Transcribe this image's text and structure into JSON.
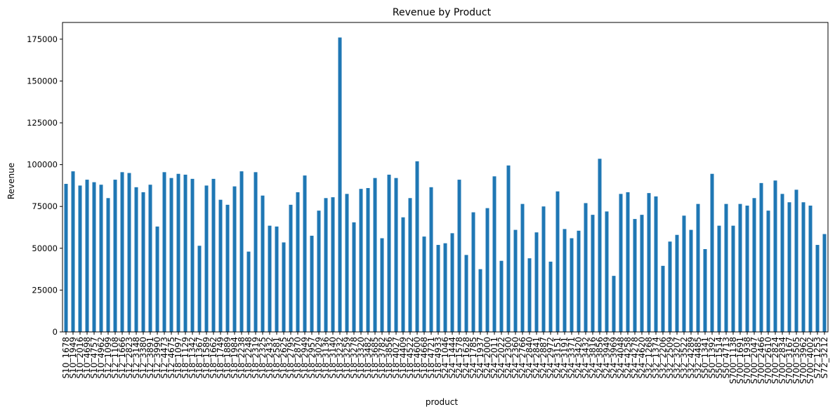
{
  "chart_data": {
    "type": "bar",
    "title": "Revenue by Product",
    "xlabel": "product",
    "ylabel": "Revenue",
    "ylim": [
      0,
      185000
    ],
    "yticks": [
      0,
      25000,
      50000,
      75000,
      100000,
      125000,
      150000,
      175000
    ],
    "ytick_labels": [
      "0",
      "25000",
      "50000",
      "75000",
      "100000",
      "125000",
      "150000",
      "175000"
    ],
    "grid": false,
    "legend": "none",
    "bar_color": "#1f77b4",
    "categories": [
      "S10_1678",
      "S10_1949",
      "S10_2016",
      "S10_4698",
      "S10_4757",
      "S10_4962",
      "S12_1099",
      "S12_1108",
      "S12_1666",
      "S12_2823",
      "S12_3148",
      "S12_3380",
      "S12_3891",
      "S12_3990",
      "S12_4473",
      "S12_4675",
      "S18_1097",
      "S18_1129",
      "S18_1342",
      "S18_1367",
      "S18_1589",
      "S18_1662",
      "S18_1749",
      "S18_1889",
      "S18_1984",
      "S18_2238",
      "S18_2248",
      "S18_2319",
      "S18_2325",
      "S18_2432",
      "S18_2581",
      "S18_2625",
      "S18_2795",
      "S18_2870",
      "S18_2949",
      "S18_2957",
      "S18_3029",
      "S18_3136",
      "S18_3140",
      "S18_3232",
      "S18_3259",
      "S18_3278",
      "S18_3320",
      "S18_3482",
      "S18_3685",
      "S18_3782",
      "S18_3856",
      "S18_4027",
      "S18_4409",
      "S18_4522",
      "S18_4600",
      "S18_4668",
      "S18_4721",
      "S18_4933",
      "S24_1046",
      "S24_1444",
      "S24_1578",
      "S24_1628",
      "S24_1785",
      "S24_1937",
      "S24_2000",
      "S24_2011",
      "S24_2022",
      "S24_2300",
      "S24_2360",
      "S24_2766",
      "S24_2840",
      "S24_2841",
      "S24_2887",
      "S24_2972",
      "S24_3151",
      "S24_3191",
      "S24_3371",
      "S24_3420",
      "S24_3432",
      "S24_3816",
      "S24_3856",
      "S24_3949",
      "S24_3969",
      "S24_4048",
      "S24_4258",
      "S24_4278",
      "S24_4620",
      "S32_1268",
      "S32_1374",
      "S32_2206",
      "S32_2509",
      "S32_3207",
      "S32_3522",
      "S32_4289",
      "S32_4485",
      "S50_1341",
      "S50_1392",
      "S50_1514",
      "S50_4713",
      "S700_1138",
      "S700_1691",
      "S700_1938",
      "S700_2047",
      "S700_2466",
      "S700_2610",
      "S700_2824",
      "S700_2834",
      "S700_3167",
      "S700_3505",
      "S700_3962",
      "S700_4002",
      "S72_1253",
      "S72_3212"
    ],
    "values": [
      88500,
      96000,
      87500,
      91000,
      89500,
      88000,
      80000,
      91000,
      95500,
      95000,
      86500,
      83500,
      88000,
      63000,
      95500,
      92000,
      94500,
      94000,
      91500,
      51500,
      87500,
      91500,
      79000,
      76000,
      87000,
      96000,
      48000,
      95500,
      81500,
      63500,
      63000,
      53500,
      76000,
      83500,
      93500,
      57500,
      72500,
      80000,
      80500,
      176000,
      82500,
      65500,
      85500,
      86000,
      92000,
      56000,
      94000,
      92000,
      68500,
      80000,
      102000,
      57000,
      86500,
      52000,
      53000,
      59000,
      91000,
      46000,
      71500,
      37500,
      74000,
      93000,
      42500,
      99500,
      61000,
      76500,
      44000,
      59500,
      75000,
      42000,
      84000,
      61500,
      56000,
      60500,
      77000,
      70000,
      103500,
      72000,
      33500,
      82500,
      83500,
      67500,
      70000,
      83000,
      81000,
      39500,
      54000,
      58000,
      69500,
      61000,
      76500,
      49500,
      94500,
      63500,
      76500,
      63500,
      76500,
      75500,
      80000,
      89000,
      72500,
      90500,
      82500,
      77500,
      85000,
      77500,
      75500,
      52000,
      58500
    ]
  }
}
